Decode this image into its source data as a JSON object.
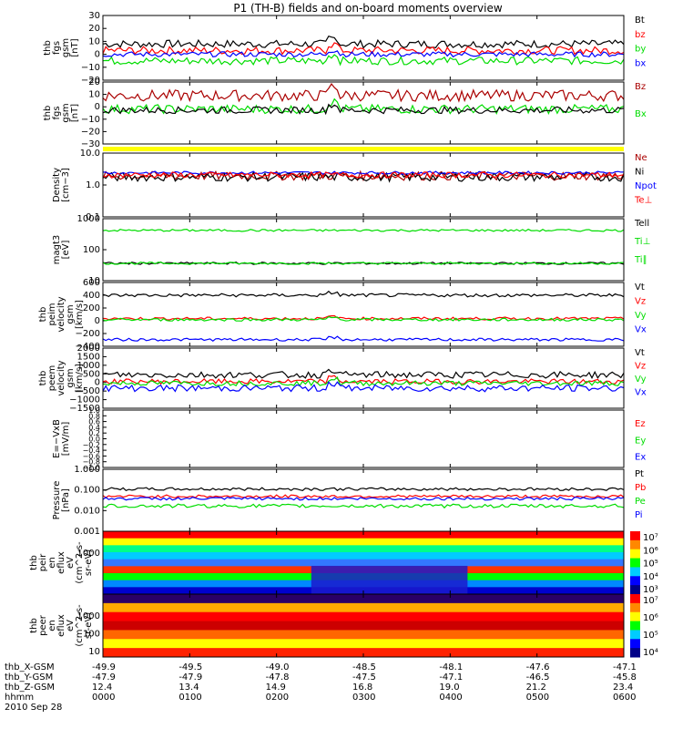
{
  "title": "P1 (TH-B) fields and on-board moments overview",
  "colors": {
    "black": "#000000",
    "red": "#ff0000",
    "darkred": "#aa0000",
    "green": "#00dd00",
    "blue": "#0000ff",
    "yellow": "#ffff00"
  },
  "chart_data": [
    {
      "id": "fgs1",
      "type": "line",
      "ylabel": [
        "thb",
        "fgs",
        "gsm",
        "[nT]"
      ],
      "ylim": [
        -20,
        30
      ],
      "yticks": [
        "30",
        "20",
        "10",
        "0",
        "−10",
        "−20"
      ],
      "series": [
        {
          "name": "Bt",
          "color": "#000000",
          "base": 8,
          "noise": 3
        },
        {
          "name": "bz",
          "color": "#ff0000",
          "base": 3,
          "noise": 3
        },
        {
          "name": "by",
          "color": "#00dd00",
          "base": -5,
          "noise": 3
        },
        {
          "name": "bx",
          "color": "#0000ff",
          "base": 0,
          "noise": 2
        }
      ]
    },
    {
      "id": "fgs2",
      "type": "line",
      "ylabel": [
        "thb",
        "fgs",
        "gsm",
        "[nT]"
      ],
      "ylim": [
        -35,
        20
      ],
      "yticks": [
        "20",
        "10",
        "0",
        "−10",
        "−20",
        "−30"
      ],
      "series": [
        {
          "name": "Bz",
          "color": "#aa0000",
          "base": 8,
          "noise": 5
        },
        {
          "name": "Bx",
          "color": "#00dd00",
          "base": -4,
          "noise": 4
        },
        {
          "name": "",
          "color": "#000000",
          "base": -5,
          "noise": 3
        }
      ]
    },
    {
      "id": "density",
      "type": "line",
      "log": true,
      "ylabel": [
        "Density",
        "[cm−3]"
      ],
      "ylim": [
        0.1,
        15
      ],
      "yticks": [
        "10.0",
        "1.0",
        "0.1"
      ],
      "series": [
        {
          "name": "Ne",
          "color": "#aa0000",
          "base": 2.5,
          "noise": 0.15
        },
        {
          "name": "Ni",
          "color": "#000000",
          "base": 2.3,
          "noise": 0.15
        },
        {
          "name": "Npot",
          "color": "#0000ff",
          "base": 3.2,
          "noise": 0.05
        },
        {
          "name": "Te⊥",
          "color": "#ff0000",
          "base": 2.7,
          "noise": 0.1
        }
      ]
    },
    {
      "id": "temp",
      "type": "line",
      "log": true,
      "ylabel": [
        "magt3",
        "[eV]"
      ],
      "ylim": [
        5,
        3000
      ],
      "yticks": [
        "1000",
        "100",
        "10"
      ],
      "series": [
        {
          "name": "Tell",
          "color": "#000000",
          "base": 30,
          "noise": 0.05
        },
        {
          "name": "Ti⊥",
          "color": "#00dd00",
          "base": 900,
          "noise": 0.05
        },
        {
          "name": "Ti∥",
          "color": "#00dd00",
          "base": 30,
          "noise": 0.05
        }
      ]
    },
    {
      "id": "peim",
      "type": "line",
      "ylabel": [
        "thb",
        "peim",
        "velocity",
        "gsm",
        "[km/s]"
      ],
      "ylim": [
        -500,
        650
      ],
      "yticks": [
        "600",
        "400",
        "200",
        "0",
        "−200",
        "−400"
      ],
      "series": [
        {
          "name": "Vt",
          "color": "#000000",
          "base": 420,
          "noise": 30
        },
        {
          "name": "Vz",
          "color": "#ff0000",
          "base": 0,
          "noise": 25
        },
        {
          "name": "Vy",
          "color": "#00dd00",
          "base": -20,
          "noise": 25
        },
        {
          "name": "Vx",
          "color": "#0000ff",
          "base": -380,
          "noise": 25
        }
      ]
    },
    {
      "id": "peem",
      "type": "line",
      "ylabel": [
        "thb",
        "peem",
        "velocity",
        "gsm",
        "[km/s]"
      ],
      "ylim": [
        -1600,
        2000
      ],
      "yticks": [
        "2000",
        "1500",
        "1000",
        "500",
        "0",
        "−500",
        "−1000",
        "−1500"
      ],
      "series": [
        {
          "name": "Vt",
          "color": "#000000",
          "base": 400,
          "noise": 200
        },
        {
          "name": "Vz",
          "color": "#ff0000",
          "base": 0,
          "noise": 150
        },
        {
          "name": "Vy",
          "color": "#00dd00",
          "base": -100,
          "noise": 150
        },
        {
          "name": "Vx",
          "color": "#0000ff",
          "base": -400,
          "noise": 200
        }
      ]
    },
    {
      "id": "exb",
      "type": "line",
      "ylabel": [
        "E=−VxB",
        "[mV/m]"
      ],
      "ylim": [
        -1,
        1
      ],
      "yticks": [
        "1.0",
        "0.8",
        "0.6",
        "0.4",
        "0.2",
        "0.0",
        "−0.2",
        "−0.4",
        "−0.6",
        "−0.8",
        "−1.0"
      ],
      "series": [
        {
          "name": "Ez",
          "color": "#ff0000"
        },
        {
          "name": "Ey",
          "color": "#00dd00"
        },
        {
          "name": "Ex",
          "color": "#0000ff"
        }
      ]
    },
    {
      "id": "pressure",
      "type": "line",
      "log": true,
      "ylabel": [
        "Pressure",
        "[nPa]"
      ],
      "ylim": [
        0.0005,
        1.2
      ],
      "yticks": [
        "1.000",
        "0.100",
        "0.010",
        "0.001"
      ],
      "series": [
        {
          "name": "Pt",
          "color": "#000000",
          "base": 0.1,
          "noise": 0.08
        },
        {
          "name": "Pb",
          "color": "#ff0000",
          "base": 0.04,
          "noise": 0.08
        },
        {
          "name": "Pe",
          "color": "#00dd00",
          "base": 0.012,
          "noise": 0.1
        },
        {
          "name": "Pi",
          "color": "#0000ff",
          "base": 0.03,
          "noise": 0.08
        }
      ]
    },
    {
      "id": "peir",
      "type": "heatmap",
      "ylabel": [
        "thb",
        "peir",
        "en",
        "eflux",
        "eV",
        "(cm^2-s-",
        "sr-eV)"
      ],
      "yticks": [
        "1000"
      ],
      "colorbar": [
        "10⁷",
        "10⁶",
        "10⁵",
        "10⁴",
        "10³"
      ]
    },
    {
      "id": "peer",
      "type": "heatmap",
      "ylabel": [
        "thb",
        "peer",
        "en",
        "eflux",
        "eV",
        "(cm^2-s-",
        "sr-eV)"
      ],
      "yticks": [
        "1000",
        "100",
        "10"
      ],
      "colorbar": [
        "10⁷",
        "10⁶",
        "10⁵",
        "10⁴"
      ]
    }
  ],
  "xaxis": {
    "row_labels": [
      "thb_X-GSM",
      "thb_Y-GSM",
      "thb_Z-GSM",
      "hhmm"
    ],
    "columns": [
      [
        "-49.9",
        "-47.9",
        "12.4",
        "0000"
      ],
      [
        "-49.5",
        "-47.9",
        "13.4",
        "0100"
      ],
      [
        "-49.0",
        "-47.8",
        "14.9",
        "0200"
      ],
      [
        "-48.5",
        "-47.5",
        "16.8",
        "0300"
      ],
      [
        "-48.1",
        "-47.1",
        "19.0",
        "0400"
      ],
      [
        "-47.6",
        "-46.5",
        "21.2",
        "0500"
      ],
      [
        "-47.1",
        "-45.8",
        "23.4",
        "0600"
      ]
    ],
    "date": "2010 Sep 28"
  }
}
